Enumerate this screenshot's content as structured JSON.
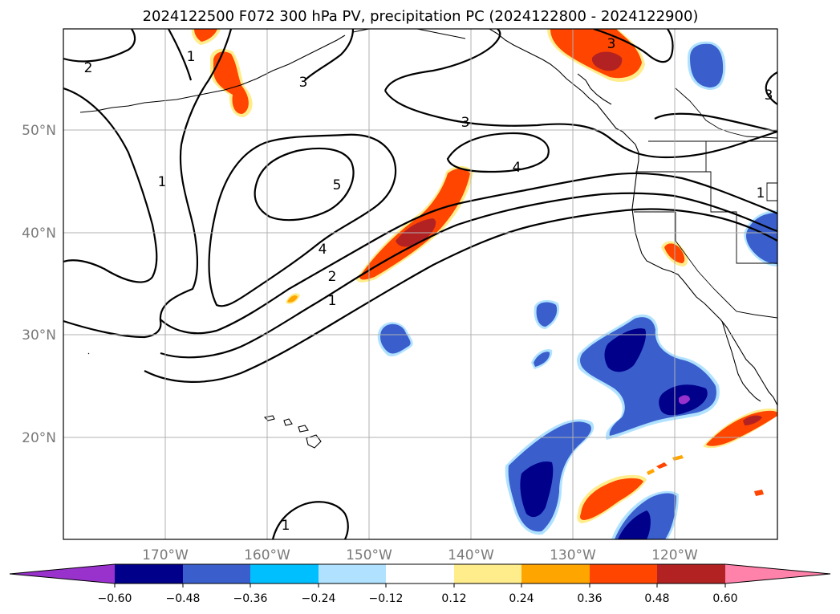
{
  "title": "2024122500 F072 300 hPa PV, precipitation PC (2024122800 - 2024122900)",
  "lat_labels": [
    "50°N",
    "40°N",
    "30°N",
    "20°N"
  ],
  "lon_labels": [
    "170°W",
    "160°W",
    "150°W",
    "140°W",
    "130°W",
    "120°W"
  ],
  "contour_labels": [
    "2",
    "1",
    "3",
    "1",
    "3",
    "5",
    "4",
    "3",
    "4",
    "2",
    "1",
    "1",
    "1",
    "3"
  ],
  "colorbar": {
    "ticks": [
      "−0.60",
      "−0.48",
      "−0.36",
      "−0.24",
      "−0.12",
      "0.12",
      "0.24",
      "0.36",
      "0.48",
      "0.60"
    ],
    "colors": [
      "#9932cc",
      "#00008b",
      "#3a5fcd",
      "#00bfff",
      "#b0e2ff",
      "#ffffff",
      "#ffec8b",
      "#ffa500",
      "#ff4500",
      "#b22222",
      "#ff82ab"
    ]
  },
  "fill_colors": {
    "strong_neg": "#00008b",
    "neg": "#3a5fcd",
    "weak_neg": "#00bfff",
    "extreme_neg": "#9932cc",
    "weak_pos": "#ffec8b",
    "mod_pos": "#ffa500",
    "pos": "#ff4500",
    "strong_pos": "#b22222"
  }
}
